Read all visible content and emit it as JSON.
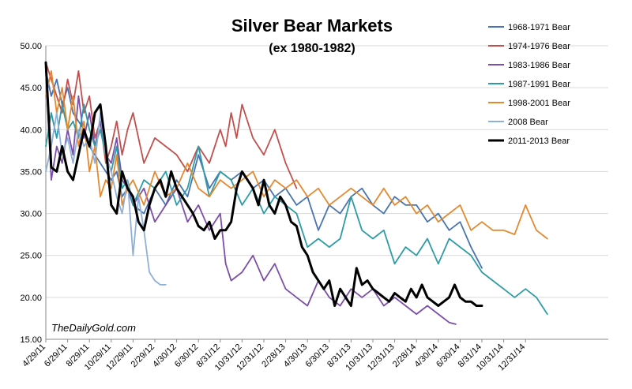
{
  "chart_data": {
    "type": "line",
    "title": "Silver Bear Markets",
    "subtitle": "(ex 1980-1982)",
    "watermark": "TheDailyGold.com",
    "xlabel": "",
    "ylabel": "",
    "ylim": [
      15,
      50
    ],
    "y_ticks": [
      "15.00",
      "20.00",
      "25.00",
      "30.00",
      "35.00",
      "40.00",
      "45.00",
      "50.00"
    ],
    "x_ticks": [
      "4/29/11",
      "6/29/11",
      "8/29/11",
      "10/29/11",
      "12/29/11",
      "2/29/12",
      "4/30/12",
      "6/30/12",
      "8/31/12",
      "10/31/12",
      "12/31/12",
      "2/28/13",
      "4/30/13",
      "6/30/13",
      "8/31/13",
      "10/31/13",
      "12/31/13",
      "2/28/14",
      "4/30/14",
      "6/30/14",
      "8/31/14",
      "10/31/14",
      "12/31/14"
    ],
    "grid": "horizontal",
    "legend_position": "right",
    "series": [
      {
        "name": "1968-1971 Bear",
        "color": "#4a74b0",
        "x": [
          0,
          0.25,
          0.5,
          0.75,
          1,
          1.25,
          1.5,
          1.75,
          2,
          2.25,
          2.5,
          2.75,
          3,
          3.25,
          3.5,
          3.75,
          4,
          4.5,
          5,
          5.5,
          6,
          6.5,
          7,
          7.5,
          8,
          8.5,
          9,
          9.5,
          10,
          10.5,
          11,
          11.5,
          12,
          12.5,
          13,
          13.5,
          14,
          14.5,
          15,
          15.5,
          16,
          16.5,
          17,
          17.5,
          18,
          18.5,
          19,
          19.5,
          20
        ],
        "values": [
          47,
          44,
          46,
          43,
          45,
          42,
          41,
          40,
          38,
          37,
          36,
          35,
          34,
          35,
          32,
          33,
          31,
          30,
          33,
          31,
          34,
          32,
          37,
          33,
          35,
          34,
          35,
          33,
          34,
          32,
          33,
          31,
          32,
          28,
          31,
          30,
          32,
          33,
          31,
          30,
          32,
          31,
          31,
          29,
          30,
          28,
          29,
          26,
          23.5
        ]
      },
      {
        "name": "1974-1976 Bear",
        "color": "#c0504d",
        "x": [
          0,
          0.25,
          0.5,
          0.75,
          1,
          1.25,
          1.5,
          1.75,
          2,
          2.25,
          2.5,
          2.75,
          3,
          3.25,
          3.5,
          3.75,
          4,
          4.5,
          5,
          5.5,
          6,
          6.5,
          7,
          7.5,
          8,
          8.25,
          8.5,
          8.75,
          9,
          9.5,
          10,
          10.5,
          11,
          11.5
        ],
        "values": [
          48,
          46,
          44,
          42,
          46,
          43,
          47,
          42,
          44,
          39,
          41,
          36,
          38,
          41,
          37,
          40,
          42,
          36,
          39,
          38,
          37,
          35,
          38,
          36,
          40,
          38,
          42,
          39,
          43,
          39,
          37,
          40,
          36,
          33
        ]
      },
      {
        "name": "1983-1986 Bear",
        "color": "#7b4fa6",
        "x": [
          0,
          0.25,
          0.5,
          0.75,
          1,
          1.25,
          1.5,
          1.75,
          2,
          2.25,
          2.5,
          2.75,
          3,
          3.25,
          3.5,
          3.75,
          4,
          4.5,
          5,
          5.5,
          6,
          6.5,
          7,
          7.5,
          8,
          8.25,
          8.5,
          9,
          9.5,
          10,
          10.5,
          11,
          11.5,
          12,
          12.5,
          13,
          13.5,
          14,
          14.5,
          15,
          15.5,
          16,
          16.5,
          17,
          17.5,
          18,
          18.5,
          18.8
        ],
        "values": [
          47,
          34,
          38,
          36,
          40,
          37,
          44,
          39,
          42,
          38,
          41,
          37,
          36,
          39,
          34,
          33,
          31,
          33,
          29,
          31,
          33,
          29,
          31,
          28,
          30,
          24,
          22,
          23,
          25,
          22,
          24,
          21,
          20,
          19,
          22,
          20,
          19,
          21,
          20,
          21,
          19,
          20,
          19,
          18,
          19,
          18,
          17,
          16.8
        ]
      },
      {
        "name": "1987-1991 Bear",
        "color": "#2e9ca6",
        "x": [
          0,
          0.25,
          0.5,
          0.75,
          1,
          1.25,
          1.5,
          1.75,
          2,
          2.25,
          2.5,
          2.75,
          3,
          3.25,
          3.5,
          3.75,
          4,
          4.5,
          5,
          5.5,
          6,
          6.5,
          7,
          7.5,
          8,
          8.5,
          9,
          9.5,
          10,
          10.5,
          11,
          11.5,
          12,
          12.5,
          13,
          13.5,
          14,
          14.5,
          15,
          15.5,
          16,
          16.5,
          17,
          17.5,
          18,
          18.5,
          19,
          19.5,
          20,
          20.5,
          21,
          21.5,
          22,
          22.5,
          23
        ],
        "values": [
          38,
          42,
          39,
          43,
          40,
          41,
          39,
          43,
          40,
          38,
          40,
          37,
          35,
          38,
          33,
          34,
          31,
          34,
          33,
          35,
          31,
          33,
          38,
          32,
          35,
          34,
          31,
          33,
          30,
          32,
          31,
          30,
          26,
          27,
          26,
          27,
          32,
          28,
          27,
          28,
          24,
          26,
          25,
          27,
          24,
          27,
          26,
          25,
          23,
          22,
          21,
          20,
          21,
          20,
          18
        ]
      },
      {
        "name": "1998-2001 Bear",
        "color": "#e3892f",
        "x": [
          0,
          0.25,
          0.5,
          0.75,
          1,
          1.25,
          1.5,
          1.75,
          2,
          2.25,
          2.5,
          2.75,
          3,
          3.25,
          3.5,
          3.75,
          4,
          4.5,
          5,
          5.5,
          6,
          6.5,
          7,
          7.5,
          8,
          8.5,
          9,
          9.5,
          10,
          10.5,
          11,
          11.5,
          12,
          12.5,
          13,
          13.5,
          14,
          14.5,
          15,
          15.5,
          16,
          16.5,
          17,
          17.5,
          18,
          18.5,
          19,
          19.5,
          20,
          20.5,
          21,
          21.5,
          22,
          22.5,
          23
        ],
        "values": [
          44,
          47,
          42,
          45,
          40,
          44,
          38,
          41,
          35,
          38,
          32,
          34,
          33,
          37,
          31,
          33,
          34,
          31,
          35,
          32,
          33,
          36,
          33,
          32,
          34,
          33,
          34,
          35,
          32,
          34,
          33,
          34,
          32,
          33,
          31,
          32,
          33,
          32,
          31,
          33,
          31,
          32,
          30,
          31,
          29,
          30,
          31,
          28,
          29,
          28,
          28,
          27.5,
          31,
          28,
          27
        ]
      },
      {
        "name": "2008 Bear",
        "color": "#8fb0d9",
        "x": [
          0,
          0.25,
          0.5,
          0.75,
          1,
          1.25,
          1.5,
          1.75,
          2,
          2.25,
          2.5,
          2.75,
          3,
          3.25,
          3.5,
          3.75,
          4,
          4.25,
          4.5,
          4.75,
          5,
          5.25,
          5.5
        ],
        "values": [
          35,
          38,
          42,
          37,
          39,
          36,
          40,
          38,
          39,
          36,
          42,
          37,
          35,
          32,
          30,
          34,
          25,
          32,
          28,
          23,
          22,
          21.5,
          21.5
        ]
      },
      {
        "name": "2011-2013 Bear",
        "color": "#000000",
        "x": [
          0,
          0.25,
          0.5,
          0.75,
          1,
          1.25,
          1.5,
          1.75,
          2,
          2.25,
          2.5,
          2.75,
          3,
          3.25,
          3.5,
          3.75,
          4,
          4.25,
          4.5,
          4.75,
          5,
          5.25,
          5.5,
          5.75,
          6,
          6.25,
          6.5,
          6.75,
          7,
          7.25,
          7.5,
          7.75,
          8,
          8.25,
          8.5,
          8.75,
          9,
          9.25,
          9.5,
          9.75,
          10,
          10.25,
          10.5,
          10.75,
          11,
          11.25,
          11.5,
          11.75,
          12,
          12.25,
          12.5,
          12.75,
          13,
          13.25,
          13.5,
          13.75,
          14,
          14.25,
          14.5,
          14.75,
          15,
          15.25,
          15.5,
          15.75,
          16,
          16.25,
          16.5,
          16.75,
          17,
          17.25,
          17.5,
          17.75,
          18,
          18.25,
          18.5,
          18.75,
          19,
          19.25,
          19.5,
          19.75,
          20
        ],
        "values": [
          48,
          35.5,
          35,
          38,
          35,
          34,
          37,
          40,
          38,
          42,
          43,
          38,
          31,
          30,
          35,
          33,
          32,
          29,
          28,
          31,
          33,
          34,
          32,
          35,
          33,
          32,
          31,
          30,
          28.5,
          28,
          29,
          27,
          28,
          28,
          29,
          33,
          35,
          34,
          33,
          31,
          34,
          31,
          30,
          32,
          31,
          29,
          28.5,
          26,
          25,
          23,
          22,
          21,
          22,
          19,
          21,
          20,
          19,
          23.5,
          21.5,
          22,
          21,
          20.5,
          20,
          19.5,
          20.5,
          20,
          19.5,
          21,
          20,
          21.5,
          20,
          19.5,
          19,
          19.5,
          20,
          21.5,
          20,
          19.5,
          19.5,
          19,
          19
        ]
      }
    ]
  }
}
